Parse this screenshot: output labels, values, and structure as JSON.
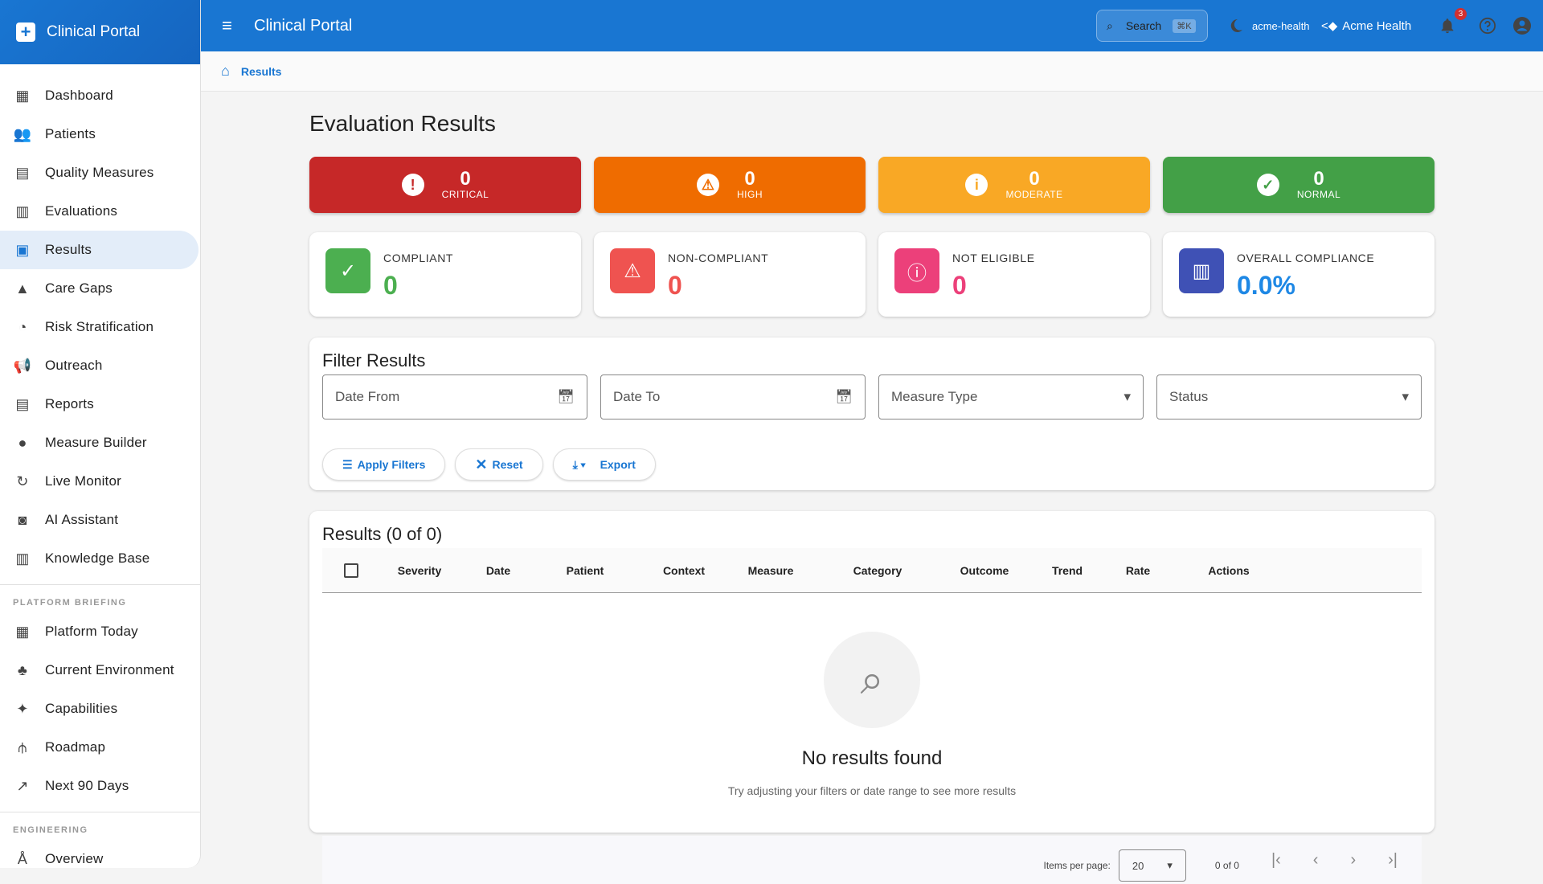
{
  "app": {
    "title": "Clinical Portal"
  },
  "sidebar": {
    "items": [
      {
        "label": "Dashboard",
        "icon": "dashboard-icon",
        "glyph": "▦"
      },
      {
        "label": "Patients",
        "icon": "people-icon",
        "glyph": "👥"
      },
      {
        "label": "Quality Measures",
        "icon": "library-books-icon",
        "glyph": "▤"
      },
      {
        "label": "Evaluations",
        "icon": "bar-chart-icon",
        "glyph": "▥"
      },
      {
        "label": "Results",
        "icon": "insert-chart-icon",
        "glyph": "▣"
      },
      {
        "label": "Care Gaps",
        "icon": "warning-icon",
        "glyph": "▲"
      },
      {
        "label": "Risk Stratification",
        "icon": "speed-icon",
        "glyph": "◔"
      },
      {
        "label": "Outreach",
        "icon": "campaign-icon",
        "glyph": "📢"
      },
      {
        "label": "Reports",
        "icon": "description-icon",
        "glyph": "▤"
      },
      {
        "label": "Measure Builder",
        "icon": "build-icon",
        "glyph": "●"
      },
      {
        "label": "Live Monitor",
        "icon": "3d-rotation-icon",
        "glyph": "↻"
      },
      {
        "label": "AI Assistant",
        "icon": "smart-toy-icon",
        "glyph": "◙"
      },
      {
        "label": "Knowledge Base",
        "icon": "menu-book-icon",
        "glyph": "▥"
      }
    ],
    "briefing_title": "PLATFORM BRIEFING",
    "briefing": [
      {
        "label": "Platform Today",
        "icon": "dashboard-customize-icon",
        "glyph": "▦"
      },
      {
        "label": "Current Environment",
        "icon": "account-tree-icon",
        "glyph": "♣"
      },
      {
        "label": "Capabilities",
        "icon": "auto-awesome-icon",
        "glyph": "✦"
      },
      {
        "label": "Roadmap",
        "icon": "route-icon",
        "glyph": "⫛"
      },
      {
        "label": "Next 90 Days",
        "icon": "trending-up-icon",
        "glyph": "↗"
      }
    ],
    "engineering_title": "ENGINEERING",
    "engineering": [
      {
        "label": "Overview",
        "icon": "architecture-icon",
        "glyph": "Å"
      }
    ]
  },
  "topbar": {
    "search": "Search",
    "shortcut": "⌘K",
    "tenant": "acme-health",
    "org": "Acme Health",
    "notifications": "3"
  },
  "breadcrumb": {
    "current": "Results"
  },
  "page": {
    "title": "Evaluation Results"
  },
  "severity": [
    {
      "count": "0",
      "label": "CRITICAL",
      "glyph": "!",
      "color": "#c62828"
    },
    {
      "count": "0",
      "label": "HIGH",
      "glyph": "⚠",
      "color": "#ef6c00"
    },
    {
      "count": "0",
      "label": "MODERATE",
      "glyph": "i",
      "color": "#f9a825"
    },
    {
      "count": "0",
      "label": "NORMAL",
      "glyph": "✓",
      "color": "#43a047"
    }
  ],
  "stats": [
    {
      "label": "COMPLIANT",
      "value": "0",
      "glyph": "✓",
      "color": "#4caf50"
    },
    {
      "label": "NON-COMPLIANT",
      "value": "0",
      "glyph": "⚠",
      "color": "#ef5350"
    },
    {
      "label": "NOT ELIGIBLE",
      "value": "0",
      "glyph": "ⓘ",
      "color": "#ec407a"
    },
    {
      "label": "OVERALL COMPLIANCE",
      "value": "0.0%",
      "glyph": "▥",
      "color": "#3f51b5",
      "value_color": "#1e88e5"
    }
  ],
  "filter": {
    "title": "Filter Results",
    "date_from": "Date From",
    "date_to": "Date To",
    "measure_type": "Measure Type",
    "status": "Status",
    "apply": "Apply Filters",
    "reset": "Reset",
    "export": "Export"
  },
  "results": {
    "title": "Results (0 of 0)",
    "columns": [
      "Severity",
      "Date",
      "Patient",
      "Context",
      "Measure",
      "Category",
      "Outcome",
      "Trend",
      "Rate",
      "Actions"
    ],
    "empty_title": "No results found",
    "empty_text": "Try adjusting your filters or date range to see more results"
  },
  "pagination": {
    "items_label": "Items per page:",
    "page_size": "20",
    "range": "0 of 0"
  }
}
